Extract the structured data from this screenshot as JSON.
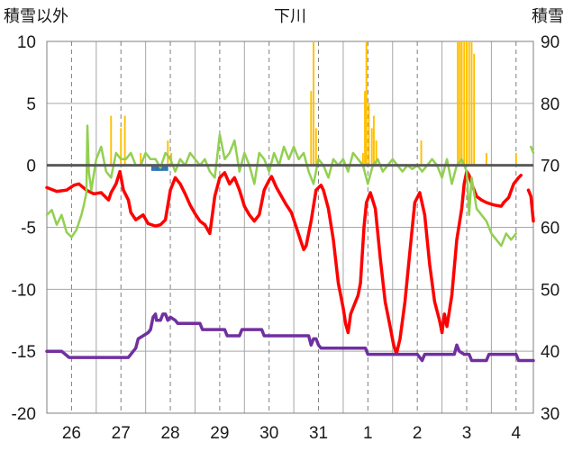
{
  "chart_data": {
    "type": "line",
    "title": "下川",
    "left_axis_label": "積雪以外",
    "right_axis_label": "積雪",
    "ylim_left": [
      -20,
      10
    ],
    "ylim_right": [
      30,
      90
    ],
    "y_ticks_left": [
      10,
      5,
      0,
      -5,
      -10,
      -15,
      -20
    ],
    "y_ticks_right": [
      90,
      80,
      70,
      60,
      50,
      40,
      30
    ],
    "x_start_day_index": -0.5,
    "x_end_day_index": 9.35,
    "x_tick_labels": [
      "26",
      "27",
      "28",
      "29",
      "30",
      "31",
      "1",
      "2",
      "3",
      "4"
    ],
    "grid": true,
    "series": [
      {
        "role": "temperature_line",
        "color": "#ff0000",
        "axis": "left",
        "points": [
          [
            -0.5,
            -1.8
          ],
          [
            -0.3,
            -2.1
          ],
          [
            -0.1,
            -2.0
          ],
          [
            0.05,
            -1.6
          ],
          [
            0.15,
            -1.5
          ],
          [
            0.3,
            -2.0
          ],
          [
            0.45,
            -2.3
          ],
          [
            0.6,
            -2.2
          ],
          [
            0.75,
            -2.8
          ],
          [
            0.8,
            -2.2
          ],
          [
            0.9,
            -1.5
          ],
          [
            0.98,
            -0.5
          ],
          [
            1.05,
            -2.0
          ],
          [
            1.15,
            -2.8
          ],
          [
            1.2,
            -3.8
          ],
          [
            1.3,
            -4.4
          ],
          [
            1.45,
            -4.0
          ],
          [
            1.55,
            -4.7
          ],
          [
            1.7,
            -4.9
          ],
          [
            1.8,
            -4.8
          ],
          [
            1.9,
            -4.4
          ],
          [
            2.0,
            -2.0
          ],
          [
            2.1,
            -1.0
          ],
          [
            2.2,
            -1.5
          ],
          [
            2.3,
            -2.3
          ],
          [
            2.4,
            -3.2
          ],
          [
            2.5,
            -3.9
          ],
          [
            2.6,
            -4.5
          ],
          [
            2.7,
            -4.8
          ],
          [
            2.8,
            -5.5
          ],
          [
            2.85,
            -4.0
          ],
          [
            2.9,
            -2.5
          ],
          [
            3.0,
            -1.0
          ],
          [
            3.1,
            -0.6
          ],
          [
            3.2,
            -1.5
          ],
          [
            3.3,
            -1.0
          ],
          [
            3.4,
            -2.0
          ],
          [
            3.5,
            -3.3
          ],
          [
            3.6,
            -4.0
          ],
          [
            3.7,
            -4.5
          ],
          [
            3.8,
            -4.0
          ],
          [
            3.85,
            -3.0
          ],
          [
            3.9,
            -2.0
          ],
          [
            4.0,
            -1.2
          ],
          [
            4.05,
            -0.9
          ],
          [
            4.15,
            -1.8
          ],
          [
            4.25,
            -2.5
          ],
          [
            4.35,
            -3.2
          ],
          [
            4.45,
            -3.8
          ],
          [
            4.55,
            -5.0
          ],
          [
            4.65,
            -6.2
          ],
          [
            4.7,
            -6.8
          ],
          [
            4.75,
            -6.5
          ],
          [
            4.85,
            -4.5
          ],
          [
            4.95,
            -2.0
          ],
          [
            5.05,
            -1.6
          ],
          [
            5.1,
            -2.0
          ],
          [
            5.2,
            -3.5
          ],
          [
            5.3,
            -6.0
          ],
          [
            5.4,
            -9.5
          ],
          [
            5.5,
            -11.5
          ],
          [
            5.55,
            -12.8
          ],
          [
            5.6,
            -13.5
          ],
          [
            5.65,
            -12.0
          ],
          [
            5.7,
            -11.5
          ],
          [
            5.8,
            -10.5
          ],
          [
            5.85,
            -9.5
          ],
          [
            5.92,
            -5.0
          ],
          [
            5.97,
            -3.0
          ],
          [
            6.05,
            -2.2
          ],
          [
            6.15,
            -3.5
          ],
          [
            6.25,
            -7.5
          ],
          [
            6.35,
            -11.0
          ],
          [
            6.45,
            -13.0
          ],
          [
            6.52,
            -14.5
          ],
          [
            6.58,
            -15.2
          ],
          [
            6.65,
            -14.0
          ],
          [
            6.75,
            -11.0
          ],
          [
            6.85,
            -7.0
          ],
          [
            6.95,
            -3.0
          ],
          [
            7.05,
            -2.2
          ],
          [
            7.15,
            -4.0
          ],
          [
            7.25,
            -8.0
          ],
          [
            7.35,
            -11.0
          ],
          [
            7.45,
            -12.5
          ],
          [
            7.5,
            -13.5
          ],
          [
            7.55,
            -12.0
          ],
          [
            7.6,
            -13.0
          ],
          [
            7.7,
            -10.5
          ],
          [
            7.8,
            -6.0
          ],
          [
            7.9,
            -3.5
          ],
          [
            7.95,
            -1.5
          ],
          [
            8.0,
            -0.5
          ],
          [
            8.05,
            -0.8
          ],
          [
            8.1,
            -1.5
          ],
          [
            8.2,
            -2.5
          ],
          [
            8.3,
            -2.8
          ],
          [
            8.4,
            -3.0
          ],
          [
            8.55,
            -3.2
          ],
          [
            8.7,
            -3.3
          ],
          [
            8.75,
            -3.0
          ],
          [
            8.85,
            -2.6
          ],
          [
            8.95,
            -1.5
          ],
          [
            9.05,
            -1.0
          ],
          [
            9.1,
            -0.8
          ]
        ]
      },
      {
        "role": "temperature_line_tail",
        "color": "#ff0000",
        "axis": "left",
        "points": [
          [
            9.25,
            -2.0
          ],
          [
            9.3,
            -2.5
          ],
          [
            9.35,
            -4.5
          ]
        ]
      },
      {
        "role": "green_line",
        "color": "#92d050",
        "axis": "left",
        "points": [
          [
            -0.5,
            -4.0
          ],
          [
            -0.4,
            -3.6
          ],
          [
            -0.3,
            -4.8
          ],
          [
            -0.2,
            -4.0
          ],
          [
            -0.1,
            -5.4
          ],
          [
            0.0,
            -5.8
          ],
          [
            0.1,
            -5.2
          ],
          [
            0.2,
            -4.0
          ],
          [
            0.25,
            -3.2
          ],
          [
            0.3,
            -2.2
          ],
          [
            0.32,
            3.2
          ],
          [
            0.35,
            -0.5
          ],
          [
            0.4,
            -2.0
          ],
          [
            0.5,
            0.5
          ],
          [
            0.6,
            1.5
          ],
          [
            0.7,
            -0.5
          ],
          [
            0.8,
            -1.0
          ],
          [
            0.9,
            1.0
          ],
          [
            1.0,
            0.5
          ],
          [
            1.1,
            0.5
          ],
          [
            1.2,
            1.0
          ],
          [
            1.3,
            0.0
          ],
          [
            1.4,
            0.0
          ],
          [
            1.5,
            1.0
          ],
          [
            1.6,
            0.5
          ],
          [
            1.7,
            0.5
          ],
          [
            1.8,
            -0.2
          ],
          [
            1.9,
            1.0
          ],
          [
            2.0,
            0.5
          ],
          [
            2.1,
            -0.5
          ],
          [
            2.2,
            0.5
          ],
          [
            2.3,
            0.0
          ],
          [
            2.4,
            1.0
          ],
          [
            2.5,
            0.5
          ],
          [
            2.6,
            0.0
          ],
          [
            2.7,
            0.5
          ],
          [
            2.8,
            -0.5
          ],
          [
            2.9,
            -1.0
          ],
          [
            3.0,
            2.5
          ],
          [
            3.1,
            0.5
          ],
          [
            3.2,
            1.0
          ],
          [
            3.3,
            2.0
          ],
          [
            3.4,
            -0.5
          ],
          [
            3.5,
            1.0
          ],
          [
            3.6,
            0.0
          ],
          [
            3.7,
            -1.5
          ],
          [
            3.8,
            1.0
          ],
          [
            3.9,
            0.5
          ],
          [
            4.0,
            -0.5
          ],
          [
            4.1,
            1.0
          ],
          [
            4.2,
            0.0
          ],
          [
            4.3,
            1.5
          ],
          [
            4.4,
            0.5
          ],
          [
            4.5,
            1.5
          ],
          [
            4.6,
            0.5
          ],
          [
            4.7,
            1.0
          ],
          [
            4.8,
            -0.5
          ],
          [
            4.9,
            -1.5
          ],
          [
            5.0,
            0.5
          ],
          [
            5.1,
            0.0
          ],
          [
            5.2,
            -1.0
          ],
          [
            5.3,
            0.5
          ],
          [
            5.4,
            0.0
          ],
          [
            5.5,
            0.5
          ],
          [
            5.6,
            -0.5
          ],
          [
            5.7,
            1.0
          ],
          [
            5.8,
            0.5
          ],
          [
            5.9,
            0.0
          ],
          [
            6.0,
            -1.5
          ],
          [
            6.1,
            0.0
          ],
          [
            6.2,
            0.5
          ],
          [
            6.3,
            -0.5
          ],
          [
            6.4,
            0.0
          ],
          [
            6.5,
            0.5
          ],
          [
            6.6,
            0.0
          ],
          [
            6.7,
            -0.5
          ],
          [
            6.8,
            0.0
          ],
          [
            6.9,
            -0.3
          ],
          [
            7.0,
            0.0
          ],
          [
            7.1,
            -0.5
          ],
          [
            7.2,
            0.0
          ],
          [
            7.3,
            0.5
          ],
          [
            7.4,
            0.0
          ],
          [
            7.5,
            -1.0
          ],
          [
            7.6,
            0.5
          ],
          [
            7.7,
            -1.5
          ],
          [
            7.8,
            0.0
          ],
          [
            7.9,
            0.5
          ],
          [
            8.0,
            -0.5
          ],
          [
            8.05,
            -4.0
          ],
          [
            8.1,
            -1.0
          ],
          [
            8.2,
            -3.5
          ],
          [
            8.3,
            -4.0
          ],
          [
            8.4,
            -4.5
          ],
          [
            8.5,
            -5.5
          ],
          [
            8.6,
            -6.0
          ],
          [
            8.7,
            -6.5
          ],
          [
            8.8,
            -5.5
          ],
          [
            8.9,
            -6.0
          ],
          [
            9.0,
            -5.5
          ]
        ]
      },
      {
        "role": "green_line_tail",
        "color": "#92d050",
        "axis": "left",
        "points": [
          [
            9.3,
            1.5
          ],
          [
            9.35,
            1.0
          ]
        ]
      },
      {
        "role": "snow_depth_line",
        "color": "#7030a0",
        "axis": "right",
        "points": [
          [
            -0.5,
            40
          ],
          [
            -0.2,
            40
          ],
          [
            -0.05,
            39
          ],
          [
            1.15,
            39
          ],
          [
            1.25,
            40
          ],
          [
            1.3,
            40.5
          ],
          [
            1.35,
            42
          ],
          [
            1.45,
            42.5
          ],
          [
            1.55,
            43
          ],
          [
            1.6,
            43.5
          ],
          [
            1.65,
            45.5
          ],
          [
            1.7,
            46
          ],
          [
            1.72,
            45
          ],
          [
            1.8,
            45
          ],
          [
            1.85,
            46
          ],
          [
            1.9,
            46
          ],
          [
            1.95,
            45
          ],
          [
            2.0,
            45.5
          ],
          [
            2.1,
            45
          ],
          [
            2.15,
            44.5
          ],
          [
            2.6,
            44.5
          ],
          [
            2.65,
            43.5
          ],
          [
            3.1,
            43.5
          ],
          [
            3.15,
            42.5
          ],
          [
            3.4,
            42.5
          ],
          [
            3.45,
            43.5
          ],
          [
            3.85,
            43.5
          ],
          [
            3.9,
            42.5
          ],
          [
            4.8,
            42.5
          ],
          [
            4.85,
            41
          ],
          [
            4.9,
            42
          ],
          [
            4.95,
            42
          ],
          [
            5.0,
            41
          ],
          [
            5.05,
            40.5
          ],
          [
            5.95,
            40.5
          ],
          [
            6.0,
            39.5
          ],
          [
            7.0,
            39.5
          ],
          [
            7.1,
            38.5
          ],
          [
            7.15,
            39.5
          ],
          [
            7.75,
            39.5
          ],
          [
            7.8,
            41
          ],
          [
            7.85,
            40
          ],
          [
            7.95,
            39.5
          ],
          [
            8.05,
            39.5
          ],
          [
            8.1,
            38.5
          ],
          [
            8.4,
            38.5
          ],
          [
            8.45,
            39.5
          ],
          [
            9.0,
            39.5
          ],
          [
            9.05,
            38.5
          ],
          [
            9.35,
            38.5
          ]
        ]
      }
    ],
    "bars": {
      "role": "precipitation",
      "color": "#ffc000",
      "axis": "left",
      "base": 0,
      "items": [
        [
          0.8,
          4.0
        ],
        [
          1.0,
          3.0
        ],
        [
          1.08,
          4.0
        ],
        [
          1.4,
          1.0
        ],
        [
          1.95,
          2.0
        ],
        [
          2.02,
          1.0
        ],
        [
          4.85,
          6.0
        ],
        [
          4.9,
          10.0
        ],
        [
          4.95,
          3.0
        ],
        [
          5.9,
          1.0
        ],
        [
          5.94,
          6.0
        ],
        [
          5.97,
          10.0
        ],
        [
          6.02,
          5.0
        ],
        [
          6.08,
          3.0
        ],
        [
          6.12,
          4.0
        ],
        [
          6.17,
          2.0
        ],
        [
          7.08,
          2.0
        ],
        [
          7.82,
          10.0
        ],
        [
          7.86,
          10.0
        ],
        [
          7.9,
          10.0
        ],
        [
          7.95,
          10.0
        ],
        [
          8.0,
          10.0
        ],
        [
          8.05,
          10.0
        ],
        [
          8.1,
          10.0
        ],
        [
          8.15,
          9.0
        ],
        [
          8.4,
          1.0
        ],
        [
          9.0,
          1.0
        ]
      ]
    },
    "blue_marks": {
      "role": "small_bars_below_zero",
      "color": "#2e75b6",
      "axis": "left",
      "items": [
        [
          1.65,
          -0.45
        ],
        [
          1.72,
          -0.45
        ],
        [
          1.78,
          -0.45
        ],
        [
          1.85,
          -0.45
        ],
        [
          1.92,
          -0.45
        ]
      ]
    }
  }
}
